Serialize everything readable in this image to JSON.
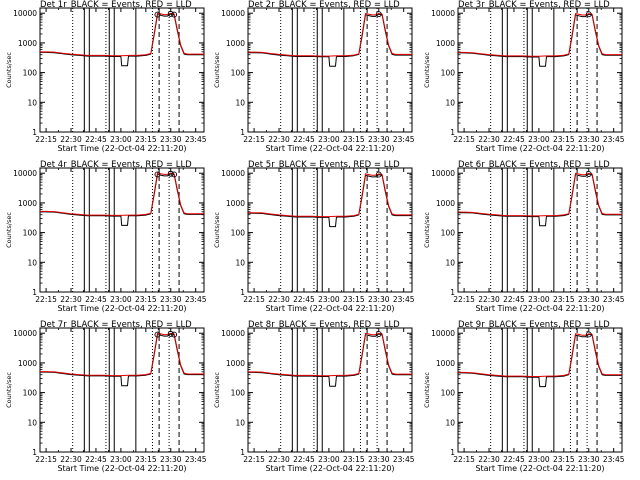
{
  "chart_data": {
    "type": "line",
    "layout": "3x3 grid of panels",
    "shared": {
      "subtitle": "BLACK = Events, RED = LLD",
      "xlabel": "Start Time (22-Oct-04 22:11:20)",
      "ylabel": "Counts/sec",
      "x_tick_labels": [
        "22:15",
        "22:30",
        "22:45",
        "23:00",
        "23:15",
        "23:30",
        "23:45"
      ],
      "xlim": [
        "22:11:20",
        "23:50:00"
      ],
      "y_scale": "log",
      "ylim": [
        1,
        15000
      ],
      "y_tick_labels": [
        "1",
        "10",
        "100",
        "1000",
        "10000"
      ],
      "series_colors": {
        "Events": "#000000",
        "LLD": "#e00000"
      },
      "solid_vertical_markers": [
        "22:38",
        "22:41",
        "22:53",
        "22:56",
        "23:09"
      ],
      "dotted_vertical_markers": [
        "22:31",
        "22:51",
        "23:19",
        "23:29"
      ],
      "dashed_vertical_markers": [
        "23:23",
        "23:35"
      ],
      "events_x": [
        "22:11",
        "22:15",
        "22:20",
        "22:25",
        "22:30",
        "22:35",
        "22:40",
        "22:45",
        "22:50",
        "22:55",
        "22:58",
        "23:00",
        "23:00:30",
        "23:04",
        "23:04:30",
        "23:05",
        "23:10",
        "23:15",
        "23:18",
        "23:20",
        "23:22",
        "23:24",
        "23:26",
        "23:28",
        "23:30",
        "23:32",
        "23:34",
        "23:36",
        "23:38",
        "23:40",
        "23:45",
        "23:50"
      ],
      "lld_x": [
        "22:11",
        "22:15",
        "22:20",
        "22:25",
        "22:30",
        "22:35",
        "22:40",
        "22:45",
        "22:50",
        "22:55",
        "23:00",
        "23:05",
        "23:10",
        "23:15",
        "23:18",
        "23:20",
        "23:22",
        "23:24",
        "23:26",
        "23:28",
        "23:30",
        "23:32",
        "23:34",
        "23:36",
        "23:38",
        "23:40",
        "23:45",
        "23:50"
      ]
    },
    "panels": [
      {
        "title": "Det 1r",
        "events_y": [
          480,
          480,
          470,
          430,
          400,
          380,
          360,
          360,
          360,
          350,
          350,
          350,
          170,
          170,
          350,
          360,
          360,
          380,
          420,
          1800,
          9000,
          8500,
          8000,
          8000,
          9500,
          9000,
          2500,
          800,
          420,
          400,
          400,
          400
        ],
        "lld_y": [
          500,
          500,
          490,
          450,
          420,
          400,
          380,
          380,
          380,
          370,
          370,
          380,
          380,
          400,
          440,
          2000,
          10000,
          9500,
          9000,
          9000,
          10000,
          9500,
          2800,
          850,
          450,
          420,
          420,
          420
        ]
      },
      {
        "title": "Det 2r",
        "events_y": [
          470,
          470,
          460,
          420,
          390,
          370,
          350,
          350,
          350,
          340,
          340,
          340,
          165,
          165,
          340,
          350,
          350,
          370,
          410,
          1700,
          8800,
          8300,
          7800,
          7800,
          9300,
          8800,
          2400,
          780,
          410,
          390,
          390,
          390
        ],
        "lld_y": [
          490,
          490,
          480,
          440,
          410,
          390,
          370,
          370,
          370,
          360,
          360,
          370,
          370,
          390,
          430,
          1950,
          9800,
          9300,
          8800,
          8800,
          9800,
          9300,
          2700,
          830,
          440,
          410,
          410,
          410
        ]
      },
      {
        "title": "Det 3r",
        "events_y": [
          460,
          460,
          450,
          415,
          385,
          365,
          345,
          345,
          345,
          335,
          335,
          335,
          165,
          165,
          335,
          345,
          345,
          365,
          405,
          1700,
          8700,
          8200,
          7700,
          7700,
          9200,
          8700,
          2400,
          770,
          405,
          385,
          385,
          385
        ],
        "lld_y": [
          480,
          480,
          470,
          435,
          405,
          385,
          365,
          365,
          365,
          355,
          355,
          365,
          365,
          385,
          425,
          1900,
          9700,
          9200,
          8700,
          8700,
          9700,
          9200,
          2650,
          820,
          435,
          405,
          405,
          405
        ]
      },
      {
        "title": "Det 4r",
        "events_y": [
          500,
          500,
          490,
          450,
          410,
          390,
          370,
          370,
          370,
          360,
          360,
          360,
          175,
          175,
          360,
          370,
          370,
          390,
          430,
          1850,
          9100,
          8600,
          8100,
          8100,
          9600,
          9100,
          2550,
          810,
          430,
          410,
          410,
          410
        ],
        "lld_y": [
          520,
          520,
          510,
          470,
          430,
          410,
          390,
          390,
          390,
          380,
          380,
          390,
          390,
          410,
          450,
          2050,
          10200,
          9600,
          9100,
          9100,
          10200,
          9600,
          2850,
          860,
          460,
          430,
          430,
          430
        ]
      },
      {
        "title": "Det 5r",
        "events_y": [
          450,
          450,
          440,
          405,
          375,
          355,
          335,
          335,
          335,
          325,
          325,
          325,
          160,
          160,
          325,
          335,
          335,
          355,
          395,
          1650,
          8500,
          8000,
          7500,
          7500,
          9000,
          8500,
          2300,
          750,
          395,
          375,
          375,
          375
        ],
        "lld_y": [
          470,
          470,
          460,
          425,
          395,
          375,
          355,
          355,
          355,
          345,
          345,
          355,
          355,
          375,
          415,
          1850,
          9500,
          9000,
          8500,
          8500,
          9500,
          9000,
          2600,
          800,
          425,
          395,
          395,
          395
        ]
      },
      {
        "title": "Det 6r",
        "events_y": [
          470,
          470,
          460,
          425,
          395,
          375,
          355,
          355,
          355,
          345,
          345,
          345,
          170,
          170,
          345,
          355,
          355,
          375,
          415,
          1750,
          8900,
          8400,
          7900,
          7900,
          9400,
          8900,
          2450,
          790,
          415,
          395,
          395,
          395
        ],
        "lld_y": [
          490,
          490,
          480,
          445,
          415,
          395,
          375,
          375,
          375,
          365,
          365,
          375,
          375,
          395,
          435,
          1950,
          9900,
          9400,
          8900,
          8900,
          9900,
          9400,
          2750,
          840,
          445,
          415,
          415,
          415
        ]
      },
      {
        "title": "Det 7r",
        "events_y": [
          490,
          490,
          480,
          440,
          405,
          385,
          365,
          365,
          365,
          355,
          355,
          355,
          170,
          170,
          355,
          365,
          365,
          385,
          425,
          1800,
          9000,
          8500,
          8000,
          8000,
          9500,
          9000,
          2500,
          800,
          425,
          405,
          405,
          405
        ],
        "lld_y": [
          510,
          510,
          500,
          460,
          425,
          405,
          385,
          385,
          385,
          375,
          375,
          385,
          385,
          405,
          445,
          2000,
          10000,
          9500,
          9000,
          9000,
          10000,
          9500,
          2800,
          850,
          455,
          425,
          425,
          425
        ]
      },
      {
        "title": "Det 8r",
        "events_y": [
          480,
          480,
          470,
          430,
          400,
          380,
          360,
          360,
          360,
          350,
          350,
          350,
          165,
          165,
          350,
          360,
          360,
          380,
          420,
          1780,
          8900,
          8400,
          7900,
          7900,
          9400,
          8900,
          2450,
          790,
          420,
          400,
          400,
          400
        ],
        "lld_y": [
          500,
          500,
          490,
          450,
          420,
          400,
          380,
          380,
          380,
          370,
          370,
          380,
          380,
          400,
          440,
          1980,
          9900,
          9400,
          8900,
          8900,
          9900,
          9400,
          2750,
          840,
          450,
          420,
          420,
          420
        ]
      },
      {
        "title": "Det 9r",
        "events_y": [
          460,
          460,
          450,
          410,
          380,
          360,
          340,
          340,
          340,
          330,
          330,
          330,
          160,
          160,
          330,
          340,
          340,
          360,
          400,
          1700,
          8600,
          8100,
          7600,
          7600,
          9100,
          8600,
          2350,
          760,
          400,
          380,
          380,
          380
        ],
        "lld_y": [
          480,
          480,
          470,
          430,
          400,
          380,
          360,
          360,
          360,
          350,
          350,
          360,
          360,
          380,
          420,
          1900,
          9600,
          9100,
          8600,
          8600,
          9600,
          9100,
          2650,
          810,
          430,
          400,
          400,
          400
        ]
      }
    ]
  }
}
